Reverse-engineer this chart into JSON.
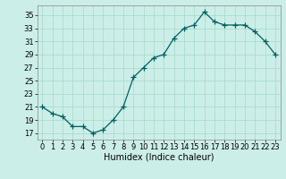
{
  "x": [
    0,
    1,
    2,
    3,
    4,
    5,
    6,
    7,
    8,
    9,
    10,
    11,
    12,
    13,
    14,
    15,
    16,
    17,
    18,
    19,
    20,
    21,
    22,
    23
  ],
  "y": [
    21,
    20,
    19.5,
    18,
    18,
    17,
    17.5,
    19,
    21,
    25.5,
    27,
    28.5,
    29,
    31.5,
    33,
    33.5,
    35.5,
    34,
    33.5,
    33.5,
    33.5,
    32.5,
    31,
    29
  ],
  "line_color": "#006060",
  "marker": "+",
  "marker_size": 4,
  "bg_color": "#cceee8",
  "grid_color": "#aaddcc",
  "xlabel": "Humidex (Indice chaleur)",
  "ylabel_ticks": [
    17,
    19,
    21,
    23,
    25,
    27,
    29,
    31,
    33,
    35
  ],
  "xlim": [
    -0.5,
    23.5
  ],
  "ylim": [
    16.0,
    36.5
  ],
  "xticks": [
    0,
    1,
    2,
    3,
    4,
    5,
    6,
    7,
    8,
    9,
    10,
    11,
    12,
    13,
    14,
    15,
    16,
    17,
    18,
    19,
    20,
    21,
    22,
    23
  ],
  "font_size": 6,
  "xlabel_fontsize": 7,
  "lw": 0.9,
  "markeredgewidth": 0.9
}
